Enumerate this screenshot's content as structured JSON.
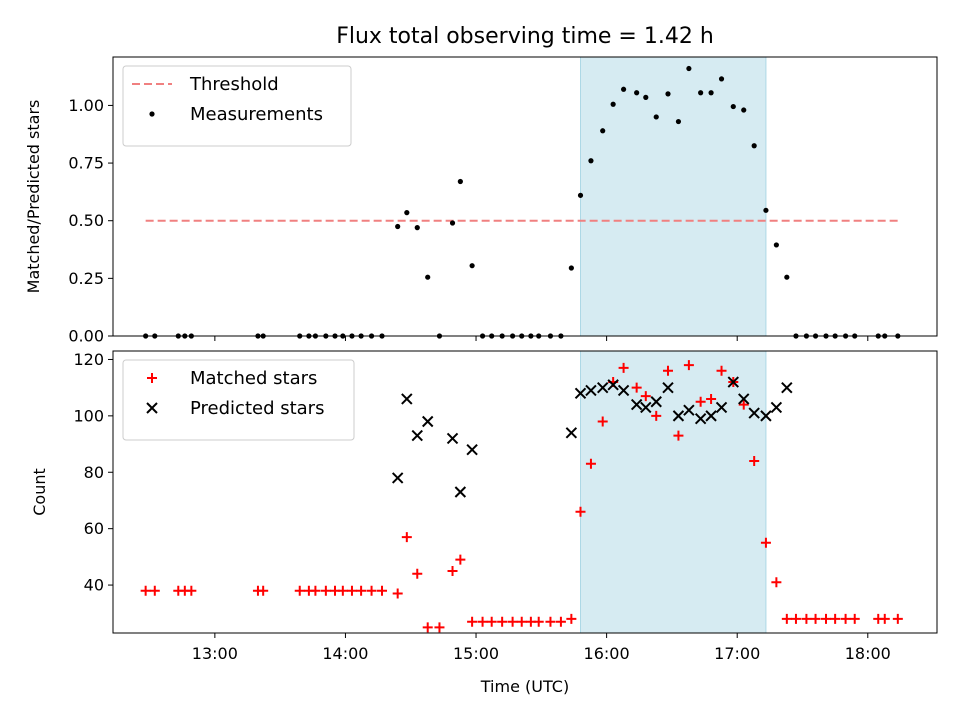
{
  "title": "Flux total observing time = 1.42 h",
  "colors": {
    "threshold": "#f08080",
    "measurement": "#000000",
    "matched": "#ff0000",
    "predicted": "#000000",
    "span_fill": "#add8e6"
  },
  "chart_data": [
    {
      "type": "scatter",
      "ylabel": "Matched/Predicted stars",
      "xlim": [
        12.22,
        18.53
      ],
      "ylim": [
        0,
        1.21
      ],
      "yticks": [
        0.0,
        0.25,
        0.5,
        0.75,
        1.0
      ],
      "ytick_labels": [
        "0.00",
        "0.25",
        "0.50",
        "0.75",
        "1.00"
      ],
      "legend_position": "upper-left",
      "highlight_span": [
        15.8,
        17.22
      ],
      "threshold": {
        "name": "Threshold",
        "y": 0.5,
        "x": [
          12.47,
          18.23
        ]
      },
      "series": [
        {
          "name": "Measurements",
          "marker": "dot",
          "x": [
            12.47,
            12.54,
            12.72,
            12.77,
            12.82,
            13.33,
            13.37,
            13.65,
            13.72,
            13.77,
            13.85,
            13.92,
            13.98,
            14.05,
            14.12,
            14.2,
            14.28,
            14.4,
            14.47,
            14.55,
            14.63,
            14.72,
            14.82,
            14.88,
            14.97,
            15.05,
            15.12,
            15.2,
            15.28,
            15.35,
            15.42,
            15.48,
            15.57,
            15.65,
            15.73,
            15.8,
            15.88,
            15.97,
            16.05,
            16.13,
            16.23,
            16.3,
            16.38,
            16.47,
            16.55,
            16.63,
            16.72,
            16.8,
            16.88,
            16.97,
            17.05,
            17.13,
            17.22,
            17.3,
            17.38,
            17.45,
            17.53,
            17.6,
            17.68,
            17.75,
            17.83,
            17.9,
            18.08,
            18.13,
            18.23
          ],
          "y": [
            0,
            0,
            0,
            0,
            0,
            0,
            0,
            0,
            0,
            0,
            0,
            0,
            0,
            0,
            0,
            0,
            0,
            0.475,
            0.535,
            0.47,
            0.255,
            0,
            0.49,
            0.67,
            0.305,
            0,
            0,
            0,
            0,
            0,
            0,
            0,
            0,
            0,
            0.295,
            0.61,
            0.76,
            0.89,
            1.005,
            1.07,
            1.055,
            1.035,
            0.95,
            1.05,
            0.93,
            1.16,
            1.055,
            1.055,
            1.115,
            0.995,
            0.98,
            0.825,
            0.545,
            0.395,
            0.255,
            0,
            0,
            0,
            0,
            0,
            0,
            0,
            0,
            0,
            0
          ]
        }
      ]
    },
    {
      "type": "scatter",
      "xlabel": "Time (UTC)",
      "ylabel": "Count",
      "xlim": [
        12.22,
        18.53
      ],
      "ylim": [
        23,
        123
      ],
      "xticks": [
        13,
        14,
        15,
        16,
        17,
        18
      ],
      "xtick_labels": [
        "13:00",
        "14:00",
        "15:00",
        "16:00",
        "17:00",
        "18:00"
      ],
      "yticks": [
        40,
        60,
        80,
        100,
        120
      ],
      "ytick_labels": [
        "40",
        "60",
        "80",
        "100",
        "120"
      ],
      "legend_position": "upper-left",
      "highlight_span": [
        15.8,
        17.22
      ],
      "series": [
        {
          "name": "Matched stars",
          "marker": "plus",
          "x": [
            12.47,
            12.54,
            12.72,
            12.77,
            12.82,
            13.33,
            13.37,
            13.65,
            13.72,
            13.77,
            13.85,
            13.92,
            13.98,
            14.05,
            14.12,
            14.2,
            14.28,
            14.4,
            14.47,
            14.55,
            14.63,
            14.72,
            14.82,
            14.88,
            14.97,
            15.05,
            15.12,
            15.2,
            15.28,
            15.35,
            15.42,
            15.48,
            15.57,
            15.65,
            15.73,
            15.8,
            15.88,
            15.97,
            16.05,
            16.13,
            16.23,
            16.3,
            16.38,
            16.47,
            16.55,
            16.63,
            16.72,
            16.8,
            16.88,
            16.97,
            17.05,
            17.13,
            17.22,
            17.3,
            17.38,
            17.45,
            17.53,
            17.6,
            17.68,
            17.75,
            17.83,
            17.9,
            18.08,
            18.13,
            18.23
          ],
          "y": [
            38,
            38,
            38,
            38,
            38,
            38,
            38,
            38,
            38,
            38,
            38,
            38,
            38,
            38,
            38,
            38,
            38,
            37,
            57,
            44,
            25,
            25,
            45,
            49,
            27,
            27,
            27,
            27,
            27,
            27,
            27,
            27,
            27,
            27,
            28,
            66,
            83,
            98,
            112,
            117,
            110,
            107,
            100,
            116,
            93,
            118,
            105,
            106,
            116,
            112,
            104,
            84,
            55,
            41,
            28,
            28,
            28,
            28,
            28,
            28,
            28,
            28,
            28,
            28,
            28
          ]
        },
        {
          "name": "Predicted stars",
          "marker": "x",
          "x": [
            14.4,
            14.47,
            14.55,
            14.63,
            14.82,
            14.88,
            14.97,
            15.73,
            15.8,
            15.88,
            15.97,
            16.05,
            16.13,
            16.23,
            16.3,
            16.38,
            16.47,
            16.55,
            16.63,
            16.72,
            16.8,
            16.88,
            16.97,
            17.05,
            17.13,
            17.22,
            17.3,
            17.38
          ],
          "y": [
            78,
            106,
            93,
            98,
            92,
            73,
            88,
            94,
            108,
            109,
            110,
            111,
            109,
            104,
            103,
            105,
            110,
            100,
            102,
            99,
            100,
            103,
            112,
            106,
            101,
            100,
            103,
            110
          ]
        }
      ]
    }
  ]
}
